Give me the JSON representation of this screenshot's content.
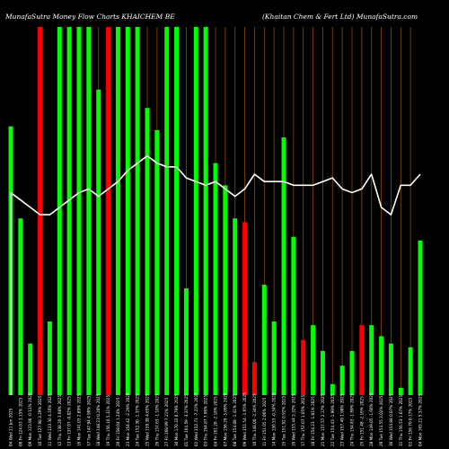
{
  "header": {
    "left_title": "MunafaSutra Money Flow Charts KHAICHEM BE",
    "right_title": "(Khaitan Chem & Fert Ltd) MunafaSutra.com"
  },
  "colors": {
    "background": "#000000",
    "up": "#00ff00",
    "down": "#ff0000",
    "line": "#ffffff",
    "grid": "#8b4a00",
    "text": "#ffffff"
  },
  "chart_data": {
    "type": "bar",
    "ylim": [
      0,
      100
    ],
    "categories": [
      "04 Wed 11 Jun 2025",
      "06 Fri 124.03 1.15% 2025",
      "09 Mon 123.90 -0.11% 2025",
      "10 Tue 127.98 3.29% 2025",
      "11 Wed 133.30 4.16% 2025",
      "12 Thu 138.20 3.68% 2025",
      "13 Fri 137.07 -0.82% 2025",
      "16 Mon 141.03 2.89% 2025",
      "17 Tue 147.94 4.90% 2025",
      "18 Wed 148.23 0.20% 2025",
      "19 Thu 156.10 5.31% 2025",
      "20 Fri 158.04 1.24% 2025",
      "23 Mon 154.42 -2.29% 2025",
      "24 Tue 152.30 -1.37% 2025",
      "25 Wed 159.38 4.65% 2025",
      "26 Thu 157.63 -1.10% 2025",
      "27 Fri 168.99 7.21% 2025",
      "30 Mon 170.33 0.79% 2025",
      "01 Tue 164.59 -3.37% 2025",
      "02 Wed 152.71 -7.22% 2025",
      "03 Thu 164.87 7.96% 2025",
      "04 Fri 161.28 -2.18% 2025",
      "07 Mon 156.29 -3.09% 2025",
      "08 Tue 154.08 -1.41% 2025",
      "09 Wed 151.54 -1.65% 2025",
      "10 Thu 148.00 -2.34% 2025",
      "11 Fri 151.05 2.06% 2025",
      "14 Mon 150.53 -0.34% 2025",
      "15 Tue 151.92 0.92% 2025",
      "16 Wed 155.44 2.32% 2025",
      "17 Thu 157.07 1.05% 2025",
      "18 Fri 154.23 -1.81% 2025",
      "21 Mon 157.57 2.17% 2025",
      "22 Tue 154.43 -1.99% 2025",
      "23 Wed 157.49 1.98% 2025",
      "24 Thu 154.83 -1.69% 2025",
      "25 Fri 151.48 -2.16% 2025",
      "28 Mon 149.05 -1.60% 2025",
      "29 Tue 153.55 3.02% 2025",
      "30 Wed 154.88 0.87% 2025",
      "31 Thu 156.53 1.07% 2025",
      "01 Fri 156.79 0.17% 2025",
      "04 Mon 165.21 5.37% 2025"
    ],
    "bar_values": [
      73,
      48,
      14,
      100,
      20,
      100,
      100,
      100,
      100,
      83,
      100,
      100,
      100,
      100,
      78,
      72,
      100,
      100,
      29,
      100,
      100,
      63,
      57,
      48,
      47,
      9,
      30,
      20,
      70,
      43,
      15,
      19,
      12,
      3,
      8,
      12,
      19,
      19,
      16,
      14,
      2,
      13,
      42
    ],
    "bar_colors": [
      "up",
      "up",
      "up",
      "down",
      "up",
      "up",
      "up",
      "up",
      "up",
      "up",
      "down",
      "up",
      "up",
      "up",
      "up",
      "up",
      "up",
      "up",
      "up",
      "up",
      "up",
      "up",
      "up",
      "up",
      "down",
      "down",
      "up",
      "up",
      "up",
      "up",
      "down",
      "up",
      "up",
      "up",
      "up",
      "up",
      "down",
      "up",
      "up",
      "up",
      "up",
      "up",
      "up"
    ],
    "line_values": [
      55,
      53,
      51,
      49,
      49,
      51,
      53,
      55,
      56,
      54,
      56,
      58,
      61,
      63,
      65,
      63,
      62,
      62,
      59,
      58,
      57,
      58,
      56,
      54,
      56,
      60,
      58,
      58,
      58,
      57,
      57,
      57,
      58,
      59,
      56,
      55,
      56,
      60,
      51,
      49,
      57,
      57,
      60
    ],
    "vertical_grid_at": [
      3,
      5,
      6,
      7,
      8,
      9,
      11,
      12,
      13,
      14,
      15,
      16,
      17,
      18,
      19,
      20,
      21,
      22,
      23,
      24,
      25,
      26,
      27,
      28,
      29,
      30,
      31,
      32,
      33,
      34,
      35,
      36,
      37,
      38,
      39,
      40,
      41
    ],
    "xlabel": "",
    "ylabel": ""
  }
}
